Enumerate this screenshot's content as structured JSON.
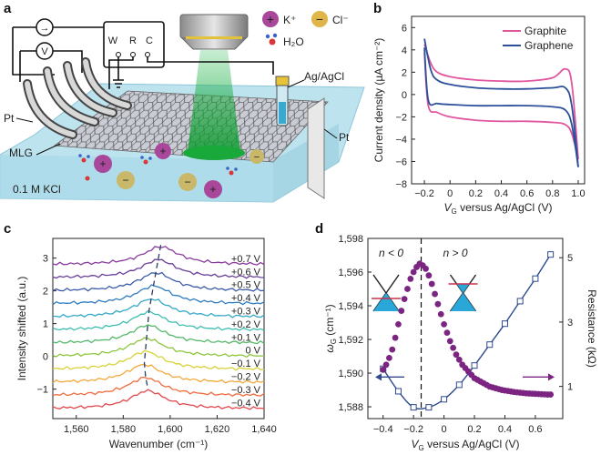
{
  "panels": {
    "a": {
      "label": "a",
      "ions": {
        "plus": "+",
        "minus": "−",
        "k": "K⁺",
        "cl": "Cl⁻",
        "h2o": "H₂O"
      },
      "circuit": {
        "meter_a": "→",
        "meter_v": "V",
        "w": "W",
        "r": "R",
        "c": "C"
      },
      "labels": {
        "pt_left": "Pt",
        "mlg": "MLG",
        "agcl": "Ag/AgCl",
        "pt_right": "Pt",
        "kcl": "0.1 M KCl"
      }
    },
    "b": {
      "label": "b",
      "chart_data": {
        "type": "line",
        "xlabel_main": "V",
        "xlabel_sub": "G",
        "xlabel_rest": " versus Ag/AgCl (V)",
        "ylabel": "Current density (µA cm⁻²)",
        "xlim": [
          -0.3,
          1.05
        ],
        "ylim": [
          -8,
          7
        ],
        "xticks": [
          -0.2,
          0,
          0.2,
          0.4,
          0.6,
          0.8,
          1.0
        ],
        "xtick_labels": [
          "−0.2",
          "0",
          "0.2",
          "0.4",
          "0.6",
          "0.8",
          "1.0"
        ],
        "yticks": [
          -8,
          -6,
          -4,
          -2,
          0,
          2,
          4,
          6
        ],
        "ytick_labels": [
          "−8",
          "−6",
          "−4",
          "−2",
          "0",
          "2",
          "4",
          "6"
        ],
        "legend_position": "top-right",
        "series": [
          {
            "name": "Graphite",
            "color": "#e0569f",
            "upper": [
              [
                -0.2,
                4.5
              ],
              [
                -0.15,
                2.8
              ],
              [
                -0.1,
                2.0
              ],
              [
                0,
                1.6
              ],
              [
                0.2,
                1.3
              ],
              [
                0.4,
                1.2
              ],
              [
                0.6,
                1.2
              ],
              [
                0.8,
                1.5
              ],
              [
                0.9,
                2.3
              ],
              [
                0.95,
                1.0
              ],
              [
                1.0,
                -5.8
              ]
            ],
            "lower": [
              [
                -0.2,
                3.8
              ],
              [
                -0.17,
                -1.0
              ],
              [
                -0.1,
                -1.6
              ],
              [
                0,
                -2.0
              ],
              [
                0.2,
                -2.3
              ],
              [
                0.4,
                -2.4
              ],
              [
                0.6,
                -2.4
              ],
              [
                0.8,
                -2.5
              ],
              [
                0.9,
                -2.7
              ],
              [
                0.95,
                -3.5
              ],
              [
                1.0,
                -5.8
              ]
            ]
          },
          {
            "name": "Graphene",
            "color": "#2c4f9a",
            "upper": [
              [
                -0.2,
                5.0
              ],
              [
                -0.15,
                2.2
              ],
              [
                -0.1,
                1.3
              ],
              [
                0,
                0.9
              ],
              [
                0.2,
                0.6
              ],
              [
                0.4,
                0.5
              ],
              [
                0.6,
                0.5
              ],
              [
                0.8,
                0.6
              ],
              [
                0.9,
                0.6
              ],
              [
                0.95,
                -1.0
              ],
              [
                1.0,
                -6.5
              ]
            ],
            "lower": [
              [
                -0.2,
                4.2
              ],
              [
                -0.17,
                -0.5
              ],
              [
                -0.1,
                -0.8
              ],
              [
                0,
                -0.9
              ],
              [
                0.2,
                -1.0
              ],
              [
                0.4,
                -1.0
              ],
              [
                0.6,
                -1.0
              ],
              [
                0.8,
                -1.1
              ],
              [
                0.9,
                -1.4
              ],
              [
                0.95,
                -2.7
              ],
              [
                1.0,
                -6.5
              ]
            ]
          }
        ]
      }
    },
    "c": {
      "label": "c",
      "chart_data": {
        "type": "line",
        "xlabel": "Wavenumber (cm⁻¹)",
        "ylabel": "Intensity shifted (a.u.)",
        "xlim": [
          1550,
          1640
        ],
        "ylim": [
          -1.9,
          3.6
        ],
        "xticks": [
          1560,
          1580,
          1600,
          1620,
          1640
        ],
        "xtick_labels": [
          "1,560",
          "1,580",
          "1,600",
          "1,620",
          "1,640"
        ],
        "yticks": [
          -1,
          0,
          1,
          2,
          3
        ],
        "ytick_labels": [
          "−1",
          "0",
          "1",
          "2",
          "3"
        ],
        "series": [
          {
            "name": "+0.7 V",
            "offset": 2.8,
            "peak": 1596,
            "color": "#8a3a9e"
          },
          {
            "name": "+0.6 V",
            "offset": 2.4,
            "peak": 1595,
            "color": "#6a3f98"
          },
          {
            "name": "+0.5 V",
            "offset": 2.0,
            "peak": 1594,
            "color": "#3b5aa8"
          },
          {
            "name": "+0.4 V",
            "offset": 1.6,
            "peak": 1593,
            "color": "#2f7cbf"
          },
          {
            "name": "+0.3 V",
            "offset": 1.2,
            "peak": 1592,
            "color": "#35a8c9"
          },
          {
            "name": "+0.2 V",
            "offset": 0.8,
            "peak": 1591,
            "color": "#3dbdb0"
          },
          {
            "name": "+0.1 V",
            "offset": 0.4,
            "peak": 1590.5,
            "color": "#52b86a"
          },
          {
            "name": "0 V",
            "offset": 0.0,
            "peak": 1590,
            "color": "#8dc63f"
          },
          {
            "name": "−0.1 V",
            "offset": -0.4,
            "peak": 1589.5,
            "color": "#d7d23a"
          },
          {
            "name": "−0.2 V",
            "offset": -0.8,
            "peak": 1589,
            "color": "#f2a93b"
          },
          {
            "name": "−0.3 V",
            "offset": -1.2,
            "peak": 1589.5,
            "color": "#ee6a3c"
          },
          {
            "name": "−0.4 V",
            "offset": -1.6,
            "peak": 1590.5,
            "color": "#e3484f"
          }
        ]
      }
    },
    "d": {
      "label": "d",
      "chart_data": {
        "type": "scatter",
        "xlabel_main": "V",
        "xlabel_sub": "G",
        "xlabel_rest": " versus Ag/AgCl (V)",
        "ylabel_left": "ω",
        "ylabel_left_sub": "G",
        "ylabel_left_rest": " (cm⁻¹)",
        "ylabel_right": "Resistance (kΩ)",
        "xlim": [
          -0.5,
          0.78
        ],
        "ylim_left": [
          1587.3,
          1598
        ],
        "ylim_right": [
          0,
          5.6
        ],
        "xticks": [
          -0.4,
          -0.2,
          0,
          0.2,
          0.4,
          0.6
        ],
        "xtick_labels": [
          "−0.4",
          "−0.2",
          "0",
          "0.2",
          "0.4",
          "0.6"
        ],
        "yticks_left": [
          1588,
          1590,
          1592,
          1594,
          1596,
          1598
        ],
        "ytick_left_labels": [
          "1,588",
          "1,590",
          "1,592",
          "1,594",
          "1,596",
          "1,598"
        ],
        "yticks_right": [
          1,
          3,
          5
        ],
        "ytick_right_labels": [
          "1",
          "3",
          "5"
        ],
        "dirac_x": -0.15,
        "region_left": "n < 0",
        "region_right": "n > 0",
        "frequency": {
          "name": "ωG",
          "color": "#7b2481",
          "points": [
            [
              -0.4,
              1590.2
            ],
            [
              -0.38,
              1590.5
            ],
            [
              -0.36,
              1590.9
            ],
            [
              -0.34,
              1591.4
            ],
            [
              -0.32,
              1592.1
            ],
            [
              -0.3,
              1592.9
            ],
            [
              -0.28,
              1593.7
            ],
            [
              -0.26,
              1594.4
            ],
            [
              -0.24,
              1595.0
            ],
            [
              -0.22,
              1595.6
            ],
            [
              -0.2,
              1596.0
            ],
            [
              -0.18,
              1596.3
            ],
            [
              -0.16,
              1596.5
            ],
            [
              -0.14,
              1596.4
            ],
            [
              -0.12,
              1596.2
            ],
            [
              -0.1,
              1595.8
            ],
            [
              -0.08,
              1595.3
            ],
            [
              -0.06,
              1594.7
            ],
            [
              -0.04,
              1594.1
            ],
            [
              -0.02,
              1593.5
            ],
            [
              0.0,
              1592.9
            ],
            [
              0.02,
              1592.4
            ],
            [
              0.04,
              1591.9
            ],
            [
              0.06,
              1591.5
            ],
            [
              0.08,
              1591.1
            ],
            [
              0.1,
              1590.8
            ],
            [
              0.12,
              1590.5
            ],
            [
              0.14,
              1590.3
            ],
            [
              0.16,
              1590.1
            ],
            [
              0.18,
              1589.9
            ],
            [
              0.2,
              1589.7
            ],
            [
              0.22,
              1589.6
            ],
            [
              0.24,
              1589.5
            ],
            [
              0.26,
              1589.4
            ],
            [
              0.28,
              1589.3
            ],
            [
              0.3,
              1589.2
            ],
            [
              0.32,
              1589.15
            ],
            [
              0.34,
              1589.1
            ],
            [
              0.36,
              1589.05
            ],
            [
              0.38,
              1589.0
            ],
            [
              0.4,
              1588.97
            ],
            [
              0.42,
              1588.94
            ],
            [
              0.44,
              1588.91
            ],
            [
              0.46,
              1588.88
            ],
            [
              0.48,
              1588.86
            ],
            [
              0.5,
              1588.84
            ],
            [
              0.52,
              1588.82
            ],
            [
              0.54,
              1588.8
            ],
            [
              0.56,
              1588.79
            ],
            [
              0.58,
              1588.78
            ],
            [
              0.6,
              1588.77
            ],
            [
              0.62,
              1588.76
            ],
            [
              0.64,
              1588.75
            ],
            [
              0.66,
              1588.74
            ],
            [
              0.68,
              1588.73
            ],
            [
              0.7,
              1588.73
            ]
          ]
        },
        "resistance": {
          "name": "Resistance",
          "color": "#2f4a8c",
          "points": [
            [
              -0.4,
              1.55
            ],
            [
              -0.3,
              0.85
            ],
            [
              -0.2,
              0.35
            ],
            [
              -0.1,
              0.35
            ],
            [
              0.0,
              0.6
            ],
            [
              0.1,
              1.05
            ],
            [
              0.2,
              1.65
            ],
            [
              0.3,
              2.3
            ],
            [
              0.4,
              2.95
            ],
            [
              0.5,
              3.65
            ],
            [
              0.6,
              4.35
            ],
            [
              0.7,
              5.1
            ]
          ]
        }
      }
    }
  }
}
